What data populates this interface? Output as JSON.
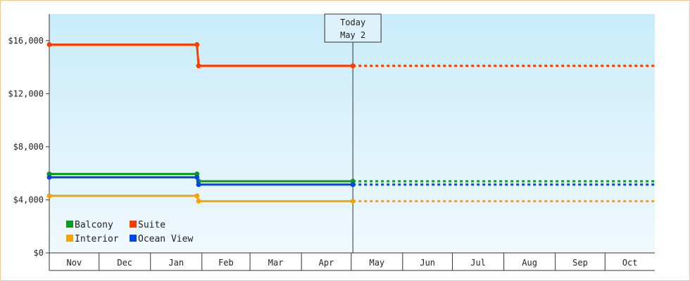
{
  "chart_data": {
    "type": "line",
    "title": "",
    "xlabel": "",
    "ylabel": "",
    "ylim": [
      0,
      18000
    ],
    "y_ticks": [
      0,
      4000,
      8000,
      12000,
      16000
    ],
    "y_tick_labels": [
      "$0",
      "$4,000",
      "$8,000",
      "$12,000",
      "$16,000"
    ],
    "x_months": [
      "Nov",
      "Dec",
      "Jan",
      "Feb",
      "Mar",
      "Apr",
      "May",
      "Jun",
      "Jul",
      "Aug",
      "Sep",
      "Oct"
    ],
    "today": {
      "line1": "Today",
      "line2": "May 2",
      "x": "2024-05-02"
    },
    "x_range": [
      "2023-11-01",
      "2024-10-31"
    ],
    "series": [
      {
        "name": "Suite",
        "color": "#ff3c00",
        "points": [
          [
            "2023-11-01",
            15700
          ],
          [
            "2024-01-29",
            15700
          ],
          [
            "2024-01-30",
            14100
          ],
          [
            "2024-05-02",
            14100
          ]
        ],
        "projection": 14100
      },
      {
        "name": "Balcony",
        "color": "#0a9a1f",
        "points": [
          [
            "2023-11-01",
            5950
          ],
          [
            "2024-01-29",
            5950
          ],
          [
            "2024-01-30",
            5400
          ],
          [
            "2024-05-02",
            5400
          ]
        ],
        "projection": 5400
      },
      {
        "name": "Ocean View",
        "color": "#0044ee",
        "points": [
          [
            "2023-11-01",
            5700
          ],
          [
            "2024-01-29",
            5700
          ],
          [
            "2024-01-30",
            5150
          ],
          [
            "2024-05-02",
            5150
          ]
        ],
        "projection": 5150
      },
      {
        "name": "Interior",
        "color": "#f5a300",
        "points": [
          [
            "2023-11-01",
            4300
          ],
          [
            "2024-01-29",
            4300
          ],
          [
            "2024-01-30",
            3900
          ],
          [
            "2024-05-02",
            3900
          ]
        ],
        "projection": 3900
      }
    ],
    "legend": [
      {
        "name": "Balcony",
        "color": "#0a9a1f"
      },
      {
        "name": "Suite",
        "color": "#ff3c00"
      },
      {
        "name": "Interior",
        "color": "#f5a300"
      },
      {
        "name": "Ocean View",
        "color": "#0044ee"
      }
    ],
    "legend_position": "bottom-left",
    "grid": false
  }
}
